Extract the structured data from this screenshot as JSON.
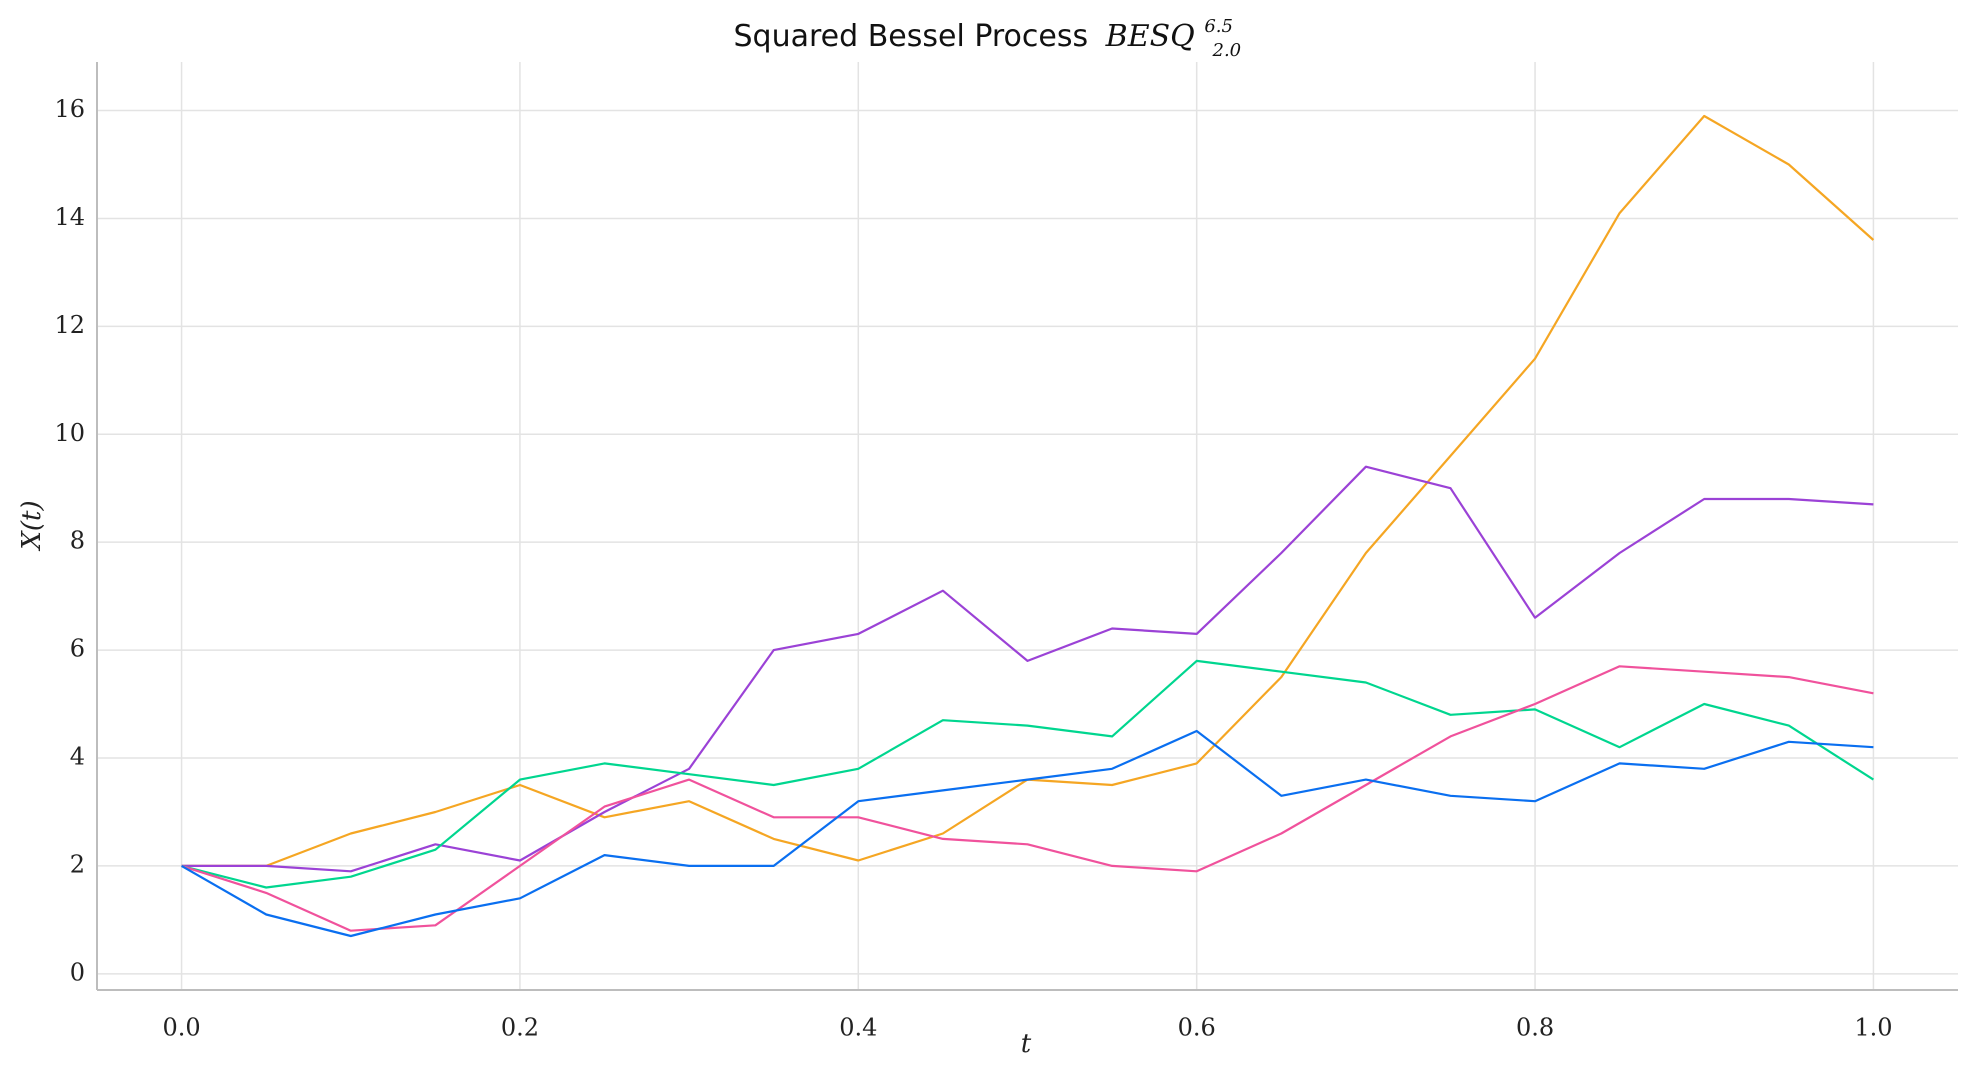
{
  "chart_data": {
    "type": "line",
    "title_prefix": "Squared Bessel Process",
    "title_symbol": "BESQ",
    "title_sup": "6.5",
    "title_sub": "2.0",
    "xlabel": "t",
    "ylabel": "X(t)",
    "xlim": [
      -0.05,
      1.05
    ],
    "ylim": [
      -0.3,
      16.9
    ],
    "xticks": [
      "0.0",
      "0.2",
      "0.4",
      "0.6",
      "0.8",
      "1.0"
    ],
    "xtick_values": [
      0.0,
      0.2,
      0.4,
      0.6,
      0.8,
      1.0
    ],
    "yticks": [
      "0",
      "2",
      "4",
      "6",
      "8",
      "10",
      "12",
      "14",
      "16"
    ],
    "ytick_values": [
      0,
      2,
      4,
      6,
      8,
      10,
      12,
      14,
      16
    ],
    "grid": true,
    "legend": "none",
    "x": [
      0.0,
      0.05,
      0.1,
      0.15,
      0.2,
      0.25,
      0.3,
      0.35,
      0.4,
      0.45,
      0.5,
      0.55,
      0.6,
      0.65,
      0.7,
      0.75,
      0.8,
      0.85,
      0.9,
      0.95,
      1.0
    ],
    "series": [
      {
        "color": "#f5a623",
        "values": [
          2.0,
          2.0,
          2.6,
          3.0,
          3.5,
          2.9,
          3.2,
          2.5,
          2.1,
          2.6,
          3.6,
          3.5,
          3.9,
          5.5,
          7.8,
          9.6,
          11.4,
          14.1,
          15.9,
          15.0,
          13.6
        ]
      },
      {
        "color": "#9b42d6",
        "values": [
          2.0,
          2.0,
          1.9,
          2.4,
          2.1,
          3.0,
          3.8,
          6.0,
          6.3,
          7.1,
          5.8,
          6.4,
          6.3,
          7.8,
          9.4,
          9.0,
          6.6,
          7.8,
          8.8,
          8.8,
          8.7
        ]
      },
      {
        "color": "#00d68f",
        "values": [
          2.0,
          1.6,
          1.8,
          2.3,
          3.6,
          3.9,
          3.7,
          3.5,
          3.8,
          4.7,
          4.6,
          4.4,
          5.8,
          5.6,
          5.4,
          4.8,
          4.9,
          4.2,
          5.0,
          4.6,
          3.6
        ]
      },
      {
        "color": "#f0529c",
        "values": [
          2.0,
          1.5,
          0.8,
          0.9,
          2.0,
          3.1,
          3.6,
          2.9,
          2.9,
          2.5,
          2.4,
          2.0,
          1.9,
          2.6,
          3.5,
          4.4,
          5.0,
          5.7,
          5.6,
          5.5,
          5.2
        ]
      },
      {
        "color": "#0a6ff0",
        "values": [
          2.0,
          1.1,
          0.7,
          1.1,
          1.4,
          2.2,
          2.0,
          2.0,
          3.2,
          3.4,
          3.6,
          3.8,
          4.5,
          3.3,
          3.6,
          3.3,
          3.2,
          3.9,
          3.8,
          4.3,
          4.2
        ]
      }
    ]
  }
}
